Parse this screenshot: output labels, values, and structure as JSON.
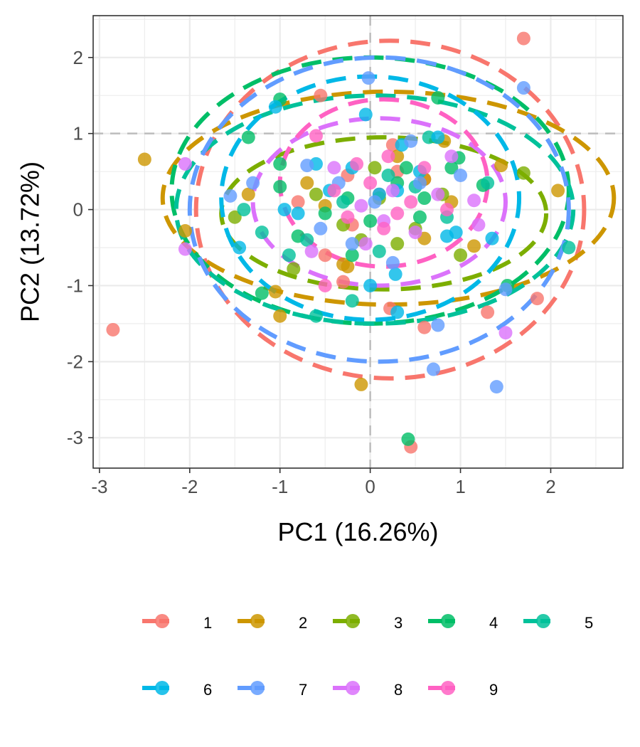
{
  "chart_data": {
    "type": "scatter",
    "title": "",
    "xlabel": "PC1 (16.26%)",
    "ylabel": "PC2 (13.72%)",
    "xlim": [
      -3.07,
      2.8
    ],
    "ylim": [
      -3.4,
      2.55
    ],
    "x_ticks": [
      "-3",
      "-2",
      "-1",
      "0",
      "1",
      "2"
    ],
    "y_ticks": [
      "2",
      "1",
      "0",
      "-1",
      "-2",
      "-3"
    ],
    "grid": true,
    "reference_lines": {
      "x": 0,
      "y": 1
    },
    "legend_position": "bottom",
    "series": [
      {
        "name": "1",
        "color": "#F8766D",
        "ellipse": {
          "cx": 0.22,
          "cy": 0.0,
          "rx": 2.15,
          "ry": 2.22
        },
        "points": [
          [
            1.7,
            2.25
          ],
          [
            -0.55,
            1.5
          ],
          [
            -2.85,
            -1.58
          ],
          [
            0.45,
            -3.12
          ],
          [
            1.85,
            -1.17
          ],
          [
            1.3,
            -1.35
          ],
          [
            0.6,
            -1.55
          ],
          [
            -0.3,
            -0.95
          ],
          [
            0.22,
            -1.3
          ],
          [
            -0.5,
            -0.6
          ],
          [
            0.3,
            0.5
          ],
          [
            0.1,
            0.2
          ],
          [
            -0.2,
            -0.2
          ],
          [
            0.6,
            0.4
          ],
          [
            -0.8,
            0.1
          ],
          [
            0.25,
            0.85
          ],
          [
            -0.25,
            0.45
          ]
        ]
      },
      {
        "name": "2",
        "color": "#CD9600",
        "ellipse": {
          "cx": 0.2,
          "cy": 0.15,
          "rx": 2.5,
          "ry": 1.4
        },
        "points": [
          [
            -2.5,
            0.66
          ],
          [
            -2.05,
            -0.28
          ],
          [
            -1.35,
            0.2
          ],
          [
            -1.0,
            -1.4
          ],
          [
            -0.7,
            0.35
          ],
          [
            -0.1,
            -2.3
          ],
          [
            0.6,
            0.4
          ],
          [
            0.82,
            0.9
          ],
          [
            1.15,
            -0.48
          ],
          [
            2.08,
            0.25
          ],
          [
            1.45,
            0.58
          ],
          [
            -0.3,
            -0.72
          ],
          [
            0.3,
            0.7
          ],
          [
            0.9,
            0.1
          ],
          [
            -0.5,
            0.05
          ],
          [
            0.6,
            -0.38
          ],
          [
            -1.05,
            -1.08
          ],
          [
            -0.25,
            -0.75
          ]
        ]
      },
      {
        "name": "3",
        "color": "#7CAE00",
        "ellipse": {
          "cx": 0.15,
          "cy": -0.05,
          "rx": 1.8,
          "ry": 1.0
        },
        "points": [
          [
            -0.85,
            -0.78
          ],
          [
            -0.3,
            -0.2
          ],
          [
            0.05,
            0.55
          ],
          [
            0.5,
            -0.25
          ],
          [
            1.7,
            0.48
          ],
          [
            -1.5,
            -0.1
          ],
          [
            0.8,
            0.2
          ],
          [
            0.3,
            -0.45
          ],
          [
            -0.6,
            0.2
          ],
          [
            1.0,
            -0.6
          ],
          [
            0.1,
            0.15
          ],
          [
            -0.1,
            -0.4
          ]
        ]
      },
      {
        "name": "4",
        "color": "#00BE67",
        "ellipse": {
          "cx": 0.0,
          "cy": 0.25,
          "rx": 2.2,
          "ry": 1.75
        },
        "points": [
          [
            -1.0,
            1.45
          ],
          [
            -1.0,
            0.6
          ],
          [
            0.42,
            -3.02
          ],
          [
            0.75,
            1.47
          ],
          [
            1.52,
            -1.0
          ],
          [
            0.98,
            0.68
          ],
          [
            0.6,
            0.15
          ],
          [
            -0.2,
            -0.6
          ],
          [
            -1.35,
            0.95
          ],
          [
            -1.2,
            -1.1
          ],
          [
            -0.5,
            -0.05
          ],
          [
            0.0,
            -0.15
          ],
          [
            0.3,
            0.35
          ],
          [
            -0.8,
            -0.35
          ],
          [
            0.9,
            0.55
          ],
          [
            0.4,
            0.55
          ],
          [
            -0.25,
            0.15
          ],
          [
            1.25,
            0.32
          ],
          [
            -1.0,
            0.3
          ],
          [
            0.55,
            -0.1
          ]
        ]
      },
      {
        "name": "5",
        "color": "#00C19A",
        "ellipse": {
          "cx": 0.05,
          "cy": 0.0,
          "rx": 2.2,
          "ry": 1.5
        },
        "points": [
          [
            2.2,
            -0.5
          ],
          [
            -1.4,
            0.0
          ],
          [
            -1.2,
            -0.3
          ],
          [
            -0.6,
            -1.4
          ],
          [
            -0.2,
            -1.2
          ],
          [
            0.5,
            0.3
          ],
          [
            0.85,
            -0.1
          ],
          [
            -0.7,
            -0.4
          ],
          [
            0.2,
            0.45
          ],
          [
            0.65,
            0.95
          ],
          [
            -0.9,
            -0.6
          ],
          [
            1.3,
            0.35
          ],
          [
            -0.3,
            0.1
          ],
          [
            0.1,
            -0.55
          ]
        ]
      },
      {
        "name": "6",
        "color": "#00B8E7",
        "ellipse": {
          "cx": 0.0,
          "cy": 0.15,
          "rx": 1.65,
          "ry": 1.6
        },
        "points": [
          [
            -1.05,
            1.35
          ],
          [
            -0.05,
            1.25
          ],
          [
            0.0,
            -1.0
          ],
          [
            0.28,
            -0.85
          ],
          [
            0.3,
            -1.35
          ],
          [
            0.55,
            0.5
          ],
          [
            0.35,
            0.85
          ],
          [
            0.85,
            -0.35
          ],
          [
            0.95,
            -0.3
          ],
          [
            -0.6,
            0.6
          ],
          [
            -0.95,
            0.0
          ],
          [
            0.1,
            0.2
          ],
          [
            0.3,
            0.25
          ],
          [
            -0.2,
            0.55
          ],
          [
            1.35,
            -0.38
          ],
          [
            -1.45,
            -0.5
          ],
          [
            -0.45,
            0.25
          ],
          [
            0.75,
            0.95
          ],
          [
            -0.8,
            -0.05
          ]
        ]
      },
      {
        "name": "7",
        "color": "#619CFF",
        "ellipse": {
          "cx": 0.1,
          "cy": 0.0,
          "rx": 2.1,
          "ry": 2.0
        },
        "points": [
          [
            1.7,
            1.6
          ],
          [
            -0.02,
            1.73
          ],
          [
            -1.55,
            0.18
          ],
          [
            1.4,
            -2.33
          ],
          [
            0.7,
            -2.1
          ],
          [
            0.75,
            -1.52
          ],
          [
            1.5,
            -1.05
          ],
          [
            -0.7,
            0.58
          ],
          [
            -0.35,
            0.35
          ],
          [
            0.05,
            0.1
          ],
          [
            0.55,
            0.35
          ],
          [
            -0.55,
            -0.25
          ],
          [
            1.0,
            0.45
          ],
          [
            -1.3,
            0.35
          ],
          [
            0.45,
            0.9
          ],
          [
            -0.2,
            -0.45
          ],
          [
            0.25,
            -0.7
          ]
        ]
      },
      {
        "name": "8",
        "color": "#DB72FB",
        "ellipse": {
          "cx": 0.1,
          "cy": 0.1,
          "rx": 1.4,
          "ry": 1.1
        },
        "points": [
          [
            -2.05,
            -0.52
          ],
          [
            -2.05,
            0.6
          ],
          [
            1.5,
            -1.62
          ],
          [
            1.15,
            0.12
          ],
          [
            -0.65,
            -0.55
          ],
          [
            -0.05,
            -0.45
          ],
          [
            0.25,
            0.25
          ],
          [
            -0.4,
            0.55
          ],
          [
            0.75,
            0.2
          ],
          [
            0.15,
            -0.15
          ],
          [
            -0.1,
            0.05
          ],
          [
            0.5,
            -0.3
          ],
          [
            0.9,
            0.7
          ],
          [
            1.2,
            -0.2
          ]
        ]
      },
      {
        "name": "9",
        "color": "#FF61C3",
        "ellipse": {
          "cx": 0.15,
          "cy": 0.35,
          "rx": 1.15,
          "ry": 1.1
        },
        "points": [
          [
            -0.6,
            0.97
          ],
          [
            -0.5,
            -1.0
          ],
          [
            0.2,
            0.7
          ],
          [
            0.0,
            0.35
          ],
          [
            -0.25,
            -0.1
          ],
          [
            0.45,
            0.1
          ],
          [
            0.85,
            0.0
          ],
          [
            -0.4,
            0.25
          ],
          [
            0.15,
            -0.25
          ],
          [
            0.6,
            0.55
          ],
          [
            -0.15,
            0.6
          ],
          [
            0.3,
            -0.05
          ]
        ]
      }
    ]
  }
}
